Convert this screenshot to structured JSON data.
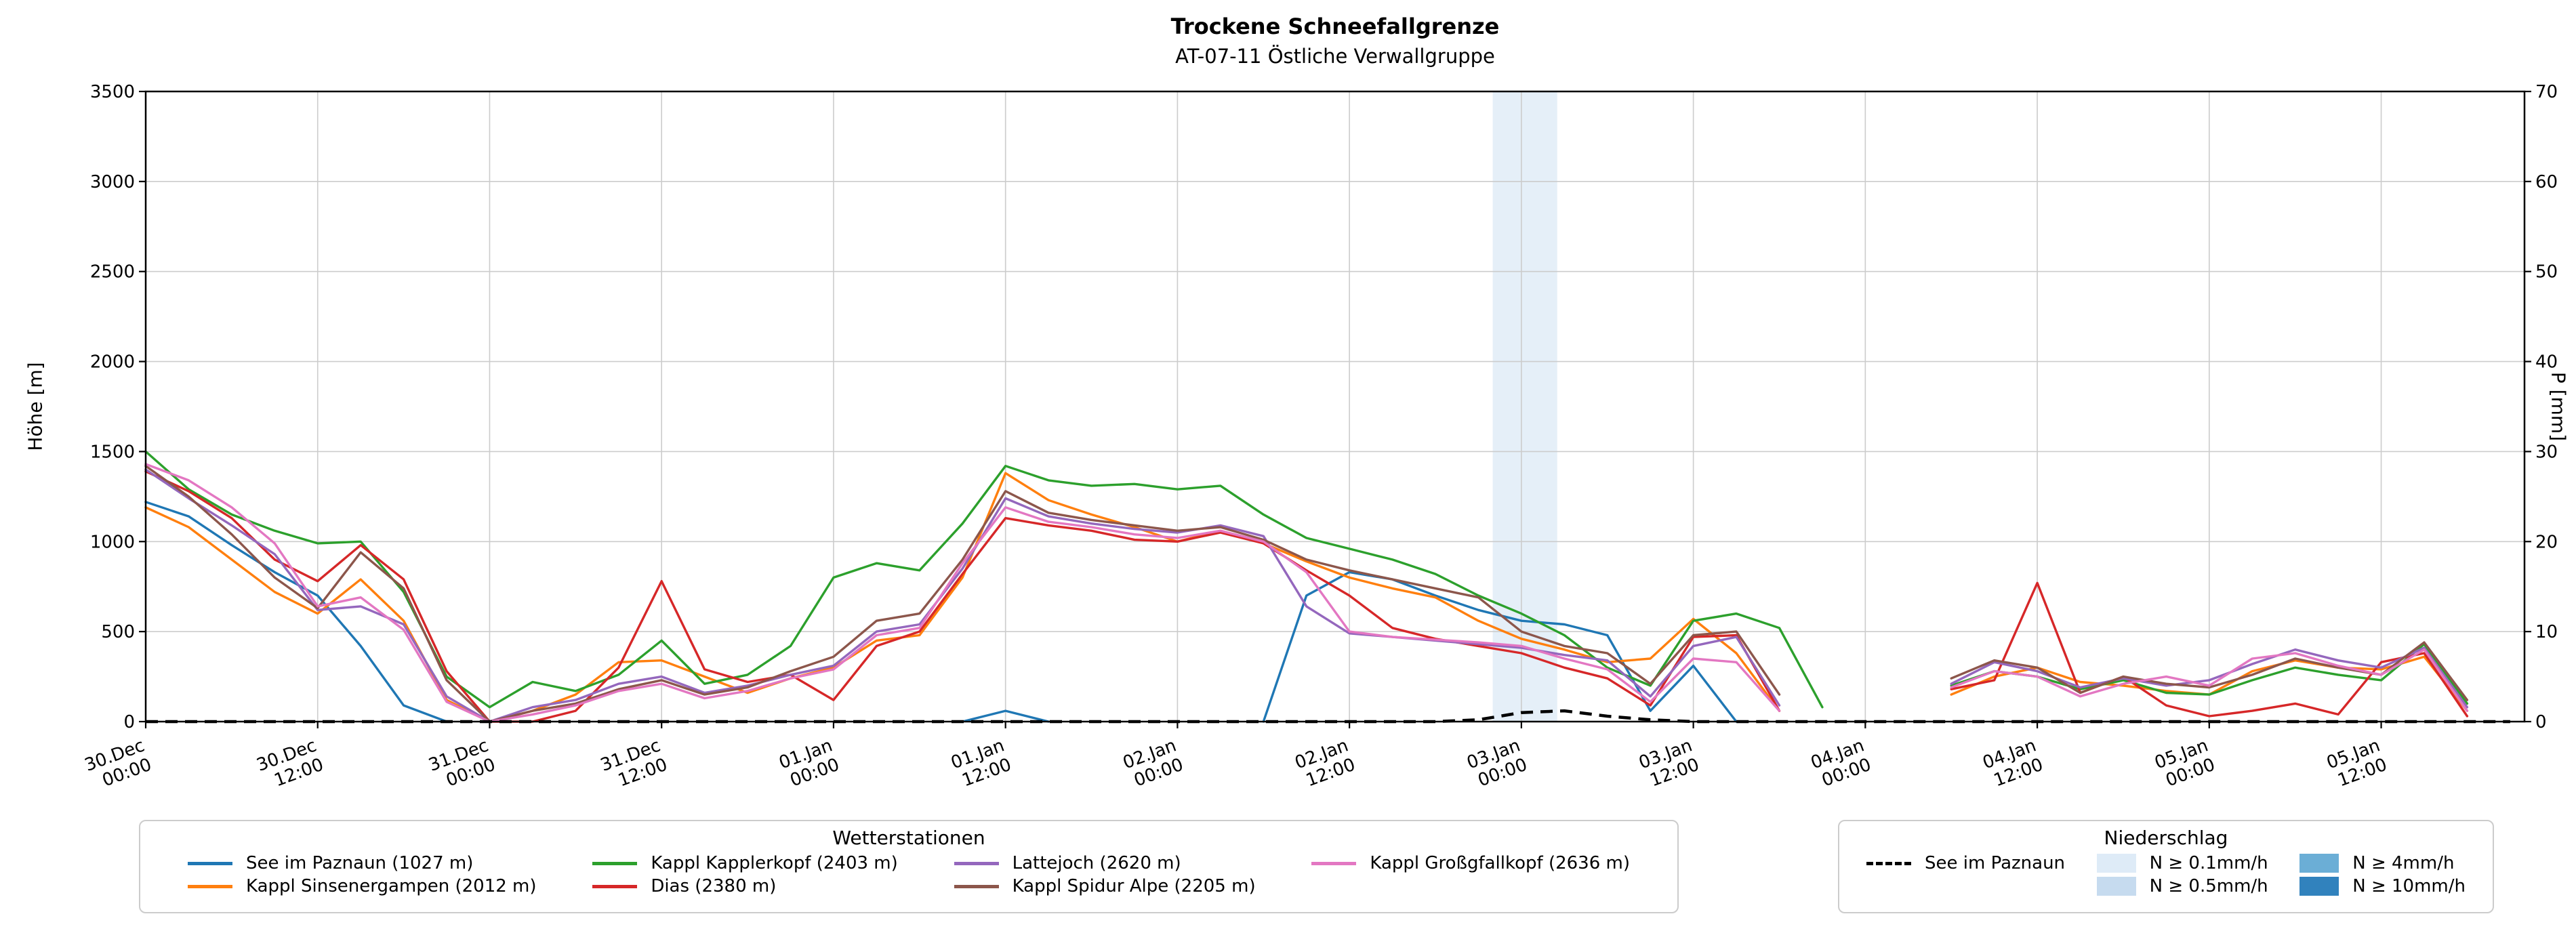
{
  "title": "Trockene Schneefallgrenze",
  "subtitle": "AT-07-11 Östliche Verwallgruppe",
  "axes": {
    "y_left_label": "Höhe [m]",
    "y_right_label": "P [mm]"
  },
  "legend_stations": {
    "title": "Wetterstationen"
  },
  "legend_precip": {
    "title": "Niederschlag",
    "dashed_label": "See im Paznaun",
    "levels": [
      {
        "label": "N ≥ 0.1mm/h",
        "color": "#deebf7"
      },
      {
        "label": "N ≥ 0.5mm/h",
        "color": "#c6dbef"
      },
      {
        "label": "N ≥ 4mm/h",
        "color": "#6baed6"
      },
      {
        "label": "N ≥ 10mm/h",
        "color": "#3182bd"
      }
    ]
  },
  "chart_data": {
    "type": "line",
    "title": "Trockene Schneefallgrenze",
    "subtitle": "AT-07-11 Östliche Verwallgruppe",
    "ylabel_left": "Höhe [m]",
    "ylabel_right": "P [mm]",
    "x_unit": "hours since 30.Dec 00:00",
    "x_step_hours": 3,
    "x_domain": [
      0,
      166
    ],
    "ylim_left": [
      0,
      3500
    ],
    "yticks_left": [
      0,
      500,
      1000,
      1500,
      2000,
      2500,
      3000,
      3500
    ],
    "ylim_right": [
      0,
      70
    ],
    "yticks_right": [
      0,
      10,
      20,
      30,
      40,
      50,
      60,
      70
    ],
    "grid": true,
    "x_ticks": [
      {
        "h": 0,
        "l1": "30.Dec",
        "l2": "00:00"
      },
      {
        "h": 12,
        "l1": "30.Dec",
        "l2": "12:00"
      },
      {
        "h": 24,
        "l1": "31.Dec",
        "l2": "00:00"
      },
      {
        "h": 36,
        "l1": "31.Dec",
        "l2": "12:00"
      },
      {
        "h": 48,
        "l1": "01.Jan",
        "l2": "00:00"
      },
      {
        "h": 60,
        "l1": "01.Jan",
        "l2": "12:00"
      },
      {
        "h": 72,
        "l1": "02.Jan",
        "l2": "00:00"
      },
      {
        "h": 84,
        "l1": "02.Jan",
        "l2": "12:00"
      },
      {
        "h": 96,
        "l1": "03.Jan",
        "l2": "00:00"
      },
      {
        "h": 108,
        "l1": "03.Jan",
        "l2": "12:00"
      },
      {
        "h": 120,
        "l1": "04.Jan",
        "l2": "00:00"
      },
      {
        "h": 132,
        "l1": "04.Jan",
        "l2": "12:00"
      },
      {
        "h": 144,
        "l1": "05.Jan",
        "l2": "00:00"
      },
      {
        "h": 156,
        "l1": "05.Jan",
        "l2": "12:00"
      }
    ],
    "precip_bands": [
      {
        "start": 94,
        "end": 98.5,
        "color": "#dce9f6"
      }
    ],
    "precip_line": {
      "name": "See im Paznaun",
      "color": "#000000",
      "axis": "right",
      "dashed": true,
      "values": [
        0,
        0,
        0,
        0,
        0,
        0,
        0,
        0,
        0,
        0,
        0,
        0,
        0,
        0,
        0,
        0,
        0,
        0,
        0,
        0,
        0,
        0,
        0,
        0,
        0,
        0,
        0,
        0,
        0,
        0,
        0,
        0.2,
        1.0,
        1.2,
        0.6,
        0.2,
        0,
        0,
        0,
        0,
        0,
        0,
        0,
        0,
        0,
        0,
        0,
        0,
        0,
        0,
        0,
        0,
        0,
        0,
        0,
        0
      ]
    },
    "series": [
      {
        "name": "See im Paznaun (1027 m)",
        "color": "#1f77b4",
        "values": [
          1220,
          1140,
          980,
          830,
          700,
          420,
          90,
          0,
          null,
          null,
          null,
          null,
          null,
          null,
          null,
          null,
          null,
          null,
          null,
          0,
          60,
          0,
          null,
          null,
          null,
          null,
          0,
          700,
          830,
          790,
          700,
          620,
          560,
          540,
          480,
          60,
          310,
          0,
          null,
          null,
          null,
          null,
          null,
          null,
          null,
          null,
          null,
          null,
          null,
          null,
          null,
          null,
          null,
          null,
          null,
          null
        ]
      },
      {
        "name": "Kappl Sinsenergampen (2012 m)",
        "color": "#ff7f0e",
        "values": [
          1190,
          1080,
          900,
          720,
          600,
          790,
          560,
          120,
          0,
          60,
          150,
          330,
          340,
          250,
          160,
          240,
          300,
          450,
          480,
          800,
          1380,
          1230,
          1150,
          1080,
          1000,
          1060,
          990,
          890,
          800,
          740,
          690,
          560,
          460,
          400,
          330,
          350,
          570,
          380,
          60,
          null,
          null,
          null,
          150,
          250,
          300,
          220,
          200,
          170,
          150,
          280,
          340,
          300,
          290,
          360,
          60,
          null
        ]
      },
      {
        "name": "Kappl Kapplerkopf (2403 m)",
        "color": "#2ca02c",
        "values": [
          1500,
          1290,
          1150,
          1060,
          990,
          1000,
          720,
          250,
          80,
          220,
          170,
          260,
          450,
          210,
          260,
          420,
          800,
          880,
          840,
          1100,
          1420,
          1340,
          1310,
          1320,
          1290,
          1310,
          1150,
          1020,
          960,
          900,
          820,
          700,
          600,
          480,
          300,
          200,
          560,
          600,
          520,
          80,
          null,
          null,
          200,
          280,
          250,
          180,
          230,
          160,
          150,
          230,
          300,
          260,
          230,
          430,
          100,
          null
        ]
      },
      {
        "name": "Dias (2380 m)",
        "color": "#d62728",
        "values": [
          1390,
          1280,
          1130,
          900,
          780,
          980,
          790,
          280,
          0,
          0,
          60,
          300,
          780,
          290,
          220,
          260,
          120,
          420,
          500,
          820,
          1130,
          1090,
          1060,
          1010,
          1000,
          1050,
          990,
          840,
          700,
          520,
          460,
          420,
          380,
          300,
          240,
          90,
          470,
          480,
          60,
          null,
          null,
          null,
          180,
          230,
          770,
          160,
          250,
          90,
          30,
          60,
          100,
          40,
          330,
          380,
          30,
          null
        ]
      },
      {
        "name": "Lattejoch (2620 m)",
        "color": "#9467bd",
        "values": [
          1400,
          1240,
          1090,
          930,
          620,
          640,
          540,
          140,
          0,
          80,
          120,
          210,
          250,
          160,
          200,
          260,
          310,
          500,
          540,
          850,
          1240,
          1140,
          1100,
          1070,
          1050,
          1090,
          1030,
          640,
          490,
          470,
          450,
          430,
          410,
          370,
          340,
          140,
          420,
          470,
          90,
          null,
          null,
          null,
          210,
          330,
          280,
          190,
          240,
          200,
          230,
          320,
          400,
          340,
          300,
          410,
          80,
          null
        ]
      },
      {
        "name": "Kappl Spidur Alpe (2205 m)",
        "color": "#8c564b",
        "values": [
          1420,
          1250,
          1040,
          800,
          630,
          940,
          740,
          230,
          0,
          60,
          100,
          180,
          230,
          150,
          190,
          280,
          360,
          560,
          600,
          900,
          1280,
          1160,
          1120,
          1090,
          1060,
          1080,
          1010,
          900,
          840,
          790,
          740,
          690,
          500,
          420,
          380,
          210,
          480,
          500,
          150,
          null,
          null,
          null,
          240,
          340,
          300,
          160,
          250,
          210,
          190,
          260,
          350,
          300,
          260,
          440,
          120,
          null
        ]
      },
      {
        "name": "Kappl Großgfallkopf (2636 m)",
        "color": "#e377c2",
        "values": [
          1430,
          1340,
          1190,
          990,
          640,
          690,
          510,
          110,
          0,
          40,
          90,
          170,
          210,
          130,
          170,
          240,
          290,
          480,
          520,
          880,
          1190,
          1110,
          1080,
          1040,
          1020,
          1060,
          1000,
          830,
          500,
          470,
          455,
          440,
          420,
          350,
          290,
          110,
          350,
          330,
          60,
          null,
          null,
          null,
          190,
          280,
          250,
          140,
          210,
          250,
          200,
          350,
          380,
          310,
          260,
          400,
          60,
          null
        ]
      }
    ]
  }
}
